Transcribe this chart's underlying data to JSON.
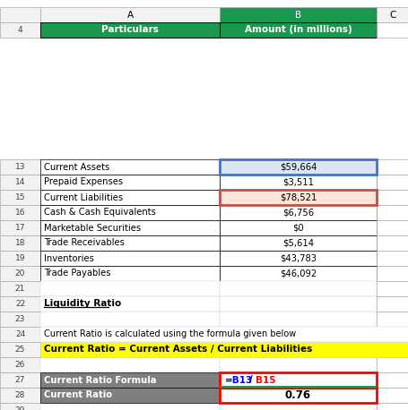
{
  "col_a_label": "A",
  "col_b_label": "B",
  "col_c_label": "C",
  "header_bg": "#1a9850",
  "header_text_color": "#ffffff",
  "data_rows": [
    {
      "row": "13",
      "col_a": "Current Assets",
      "col_b": "$59,664",
      "bg_a": "#ffffff",
      "bg_b": "#dce6f1"
    },
    {
      "row": "14",
      "col_a": "Prepaid Expenses",
      "col_b": "$3,511",
      "bg_a": "#ffffff",
      "bg_b": "#ffffff"
    },
    {
      "row": "15",
      "col_a": "Current Liabilities",
      "col_b": "$78,521",
      "bg_a": "#ffffff",
      "bg_b": "#fce4d6"
    },
    {
      "row": "16",
      "col_a": "Cash & Cash Equivalents",
      "col_b": "$6,756",
      "bg_a": "#ffffff",
      "bg_b": "#ffffff"
    },
    {
      "row": "17",
      "col_a": "Marketable Securities",
      "col_b": "$0",
      "bg_a": "#ffffff",
      "bg_b": "#ffffff"
    },
    {
      "row": "18",
      "col_a": "Trade Receivables",
      "col_b": "$5,614",
      "bg_a": "#ffffff",
      "bg_b": "#ffffff"
    },
    {
      "row": "19",
      "col_a": "Inventories",
      "col_b": "$43,783",
      "bg_a": "#ffffff",
      "bg_b": "#ffffff"
    },
    {
      "row": "20",
      "col_a": "Trade Payables",
      "col_b": "$46,092",
      "bg_a": "#ffffff",
      "bg_b": "#ffffff"
    }
  ],
  "row22_text": "Liquidity Ratio",
  "row24_text": "Current Ratio is calculated using the formula given below",
  "row25_text": "Current Ratio = Current Assets / Current Liabilities",
  "row25_bg": "#ffff00",
  "row25_text_color": "#000000",
  "formula_row": {
    "label": "Current Ratio Formula",
    "b13_text": "=B13",
    "div_text": "/",
    "b15_text": "B15",
    "b13_color": "#0000ff",
    "b15_color": "#ff0000",
    "div_color": "#000000",
    "bg_label": "#7f7f7f",
    "bg_formula": "#ffffff",
    "label_text_color": "#ffffff",
    "border_color": "#ff0000",
    "green_line_color": "#00b050"
  },
  "result_row": {
    "label": "Current Ratio",
    "value": "0.76",
    "bg_label": "#7f7f7f",
    "bg_value": "#ffffff",
    "label_text_color": "#ffffff",
    "value_text_color": "#000000",
    "border_color": "#ff0000"
  },
  "row13_border_color": "#4472c4",
  "row15_border_color": "#c0504d",
  "bg_color": "#ffffff",
  "fig_width": 4.56,
  "fig_height": 4.58,
  "dpi": 100
}
